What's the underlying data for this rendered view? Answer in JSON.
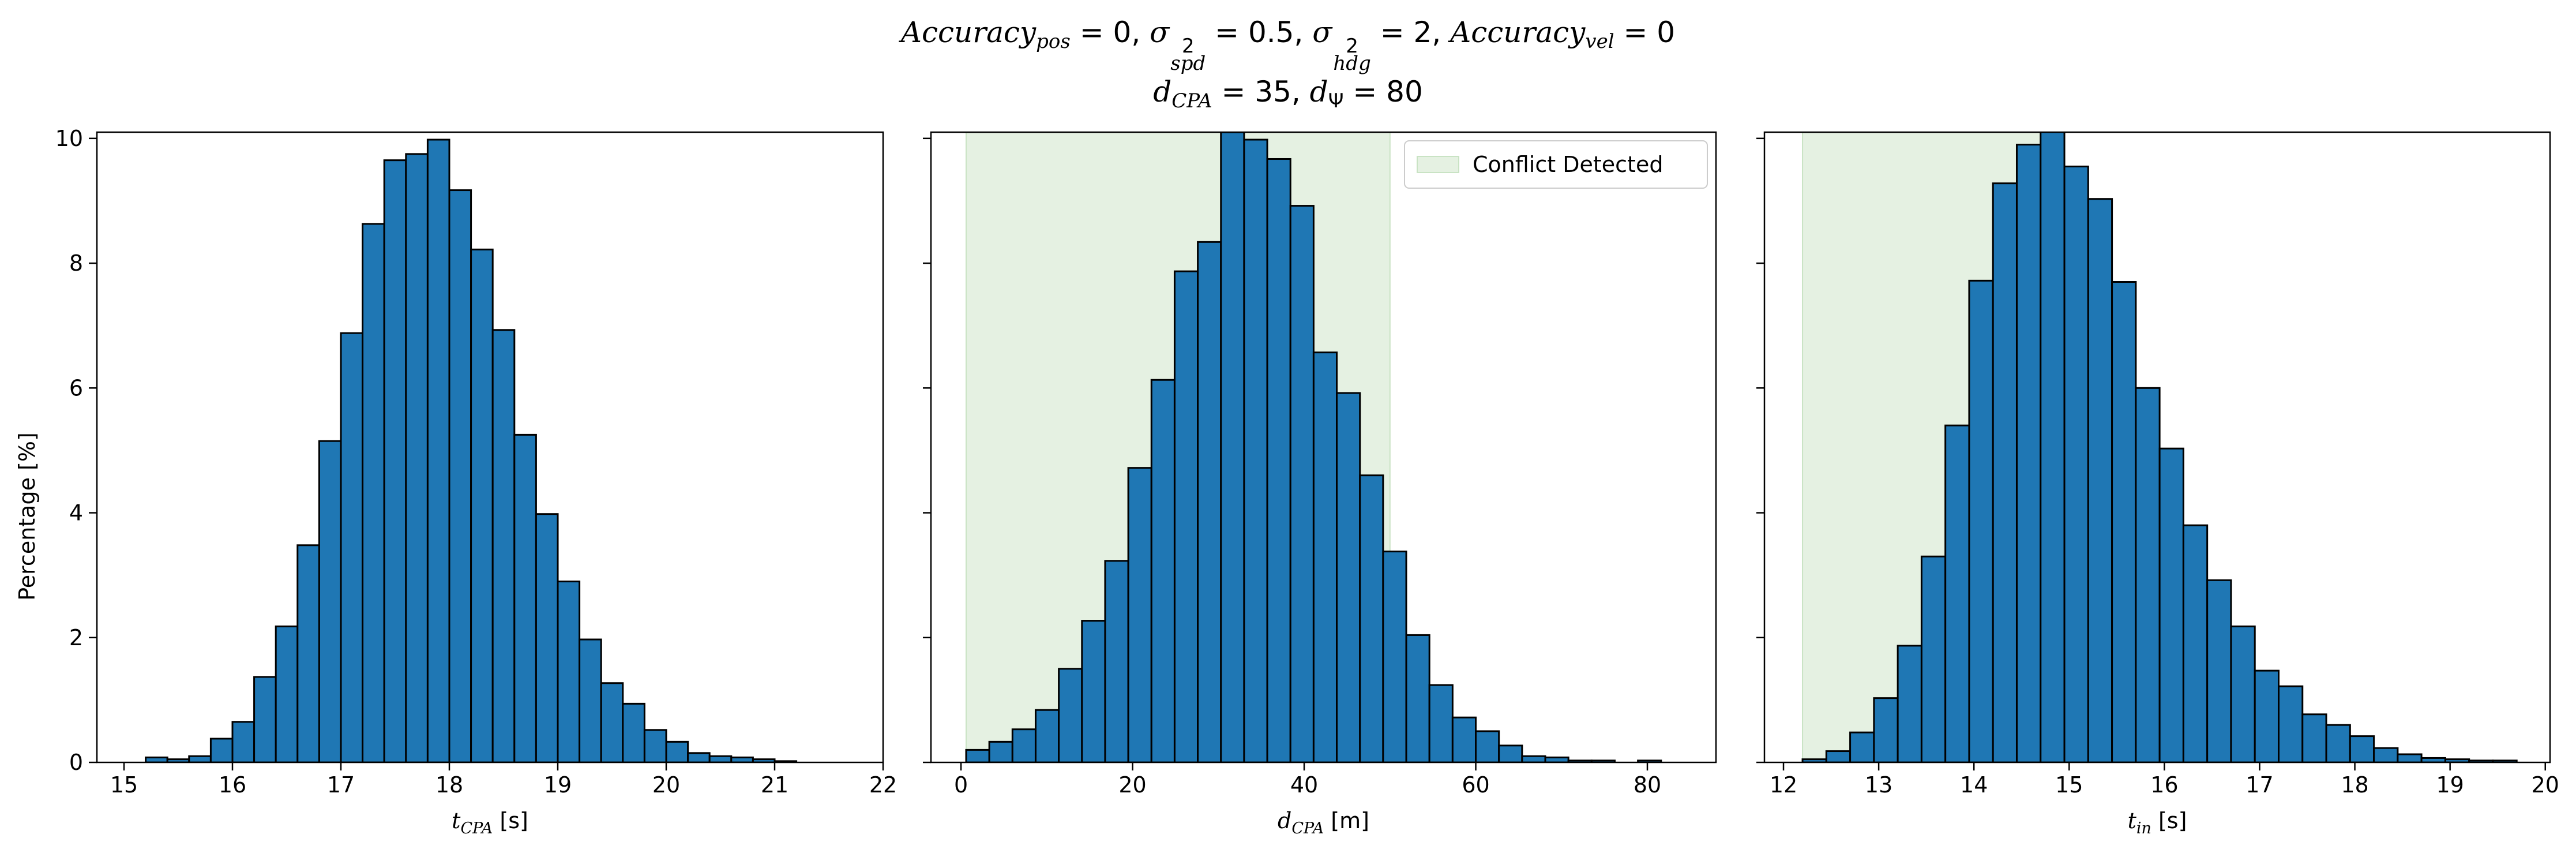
{
  "title": {
    "line1": {
      "acc_pos_label": "Accuracy",
      "acc_pos_sub": "pos",
      "acc_pos_val": " = 0, ",
      "sigma": "σ",
      "spd_sup": "2",
      "spd_sub": "spd",
      "spd_val": " = 0.5, ",
      "hdg_sup": "2",
      "hdg_sub": "hdg",
      "hdg_val": " = 2, ",
      "acc_vel_label": "Accuracy",
      "acc_vel_sub": "vel",
      "acc_vel_val": " = 0"
    },
    "line2": {
      "d_cpa_label": "d",
      "d_cpa_sub": "CPA",
      "d_cpa_val": " = 35, ",
      "d_psi_label": "d",
      "d_psi_sub": "Ψ",
      "d_psi_val": " = 80"
    }
  },
  "y_axis_label": "Percentage [%]",
  "colors": {
    "bar_fill": "#1f77b4",
    "bar_edge": "#000000",
    "conflict_fill": "#e5f1e2",
    "conflict_edge": "#c9e3c4"
  },
  "chart_data": [
    {
      "type": "bar",
      "xlabel_main": "t",
      "xlabel_sub": "CPA",
      "xlabel_unit": " [s]",
      "xlim": [
        14.75,
        22.0
      ],
      "ylim": [
        0,
        10.1
      ],
      "xticks": [
        "15",
        "16",
        "17",
        "18",
        "19",
        "20",
        "21",
        "22"
      ],
      "xtick_values": [
        15,
        16,
        17,
        18,
        19,
        20,
        21,
        22
      ],
      "yticks": [
        "0",
        "2",
        "4",
        "6",
        "8",
        "10"
      ],
      "ytick_values": [
        0,
        2,
        4,
        6,
        8,
        10
      ],
      "bin_start": 15.2,
      "bin_width": 0.2,
      "values": [
        0.08,
        0.05,
        0.1,
        0.38,
        0.65,
        1.37,
        2.18,
        3.48,
        5.15,
        6.88,
        8.63,
        9.65,
        9.75,
        9.98,
        9.17,
        8.22,
        6.93,
        5.25,
        3.98,
        2.9,
        1.97,
        1.27,
        0.94,
        0.52,
        0.33,
        0.15,
        0.1,
        0.08,
        0.05,
        0.02
      ],
      "show_ylabels": true
    },
    {
      "type": "bar",
      "xlabel_main": "d",
      "xlabel_sub": "CPA",
      "xlabel_unit": " [m]",
      "xlim": [
        -3.5,
        88.0
      ],
      "ylim": [
        0,
        10.1
      ],
      "xticks": [
        "0",
        "20",
        "40",
        "60",
        "80"
      ],
      "xtick_values": [
        0,
        20,
        40,
        60,
        80
      ],
      "yticks": [
        "0",
        "2",
        "4",
        "6",
        "8",
        "10"
      ],
      "ytick_values": [
        0,
        2,
        4,
        6,
        8,
        10
      ],
      "bin_start": 0.6,
      "bin_width": 2.7,
      "values": [
        0.2,
        0.33,
        0.53,
        0.84,
        1.5,
        2.27,
        3.23,
        4.72,
        6.13,
        7.87,
        8.34,
        10.1,
        9.98,
        9.67,
        8.92,
        6.57,
        5.92,
        4.6,
        3.38,
        2.04,
        1.24,
        0.72,
        0.5,
        0.27,
        0.1,
        0.08,
        0.03,
        0.03,
        0.0,
        0.03
      ],
      "conflict_range": [
        0.6,
        50.0
      ],
      "legend": "Conflict Detected",
      "legend_position": "top-right",
      "show_ylabels": false
    },
    {
      "type": "bar",
      "xlabel_main": "t",
      "xlabel_sub": "in",
      "xlabel_unit": " [s]",
      "xlim": [
        11.8,
        20.05
      ],
      "ylim": [
        0,
        10.1
      ],
      "xticks": [
        "12",
        "13",
        "14",
        "15",
        "16",
        "17",
        "18",
        "19",
        "20"
      ],
      "xtick_values": [
        12,
        13,
        14,
        15,
        16,
        17,
        18,
        19,
        20
      ],
      "yticks": [
        "0",
        "2",
        "4",
        "6",
        "8",
        "10"
      ],
      "ytick_values": [
        0,
        2,
        4,
        6,
        8,
        10
      ],
      "bin_start": 12.2,
      "bin_width": 0.25,
      "values": [
        0.05,
        0.18,
        0.48,
        1.03,
        1.87,
        3.3,
        5.4,
        7.72,
        9.28,
        9.9,
        10.15,
        9.55,
        9.03,
        7.7,
        6.0,
        5.03,
        3.8,
        2.92,
        2.18,
        1.47,
        1.22,
        0.77,
        0.6,
        0.42,
        0.23,
        0.13,
        0.07,
        0.05,
        0.03,
        0.03
      ],
      "conflict_range": [
        12.2,
        14.95
      ],
      "show_ylabels": false
    }
  ]
}
